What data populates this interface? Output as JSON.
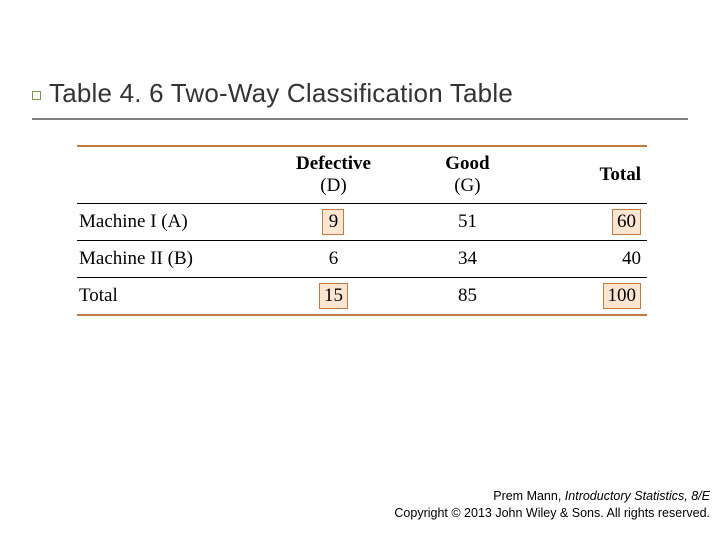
{
  "colors": {
    "bullet_border": "#7a9a4a",
    "title_text": "#333333",
    "underline": "#808080",
    "table_border_accent": "#c37a3f",
    "table_border_inner": "#000000",
    "box_border": "#c37a3f",
    "box_fill": "#fce6d2",
    "body_text": "#000000",
    "footer_text": "#000000"
  },
  "title": "Table 4. 6 Two-Way Classification Table",
  "table": {
    "col_widths_pct": [
      33,
      24,
      23,
      20
    ],
    "columns": [
      {
        "top": "Defective",
        "sub": "(D)"
      },
      {
        "top": "Good",
        "sub": "(G)"
      }
    ],
    "total_header": "Total",
    "rows": [
      {
        "label": "Machine I (A)",
        "cells": [
          {
            "value": "9",
            "boxed": true
          },
          {
            "value": "51",
            "boxed": false
          }
        ],
        "total": {
          "value": "60",
          "boxed": true
        }
      },
      {
        "label": "Machine II (B)",
        "cells": [
          {
            "value": "6",
            "boxed": false
          },
          {
            "value": "34",
            "boxed": false
          }
        ],
        "total": {
          "value": "40",
          "boxed": false
        }
      }
    ],
    "total_row": {
      "label": "Total",
      "cells": [
        {
          "value": "15",
          "boxed": true
        },
        {
          "value": "85",
          "boxed": false
        }
      ],
      "total": {
        "value": "100",
        "boxed": true
      }
    }
  },
  "footer": {
    "author": "Prem Mann, ",
    "book": "Introductory Statistics, 8/E",
    "copyright": "Copyright © 2013 John Wiley & Sons. All rights reserved."
  }
}
